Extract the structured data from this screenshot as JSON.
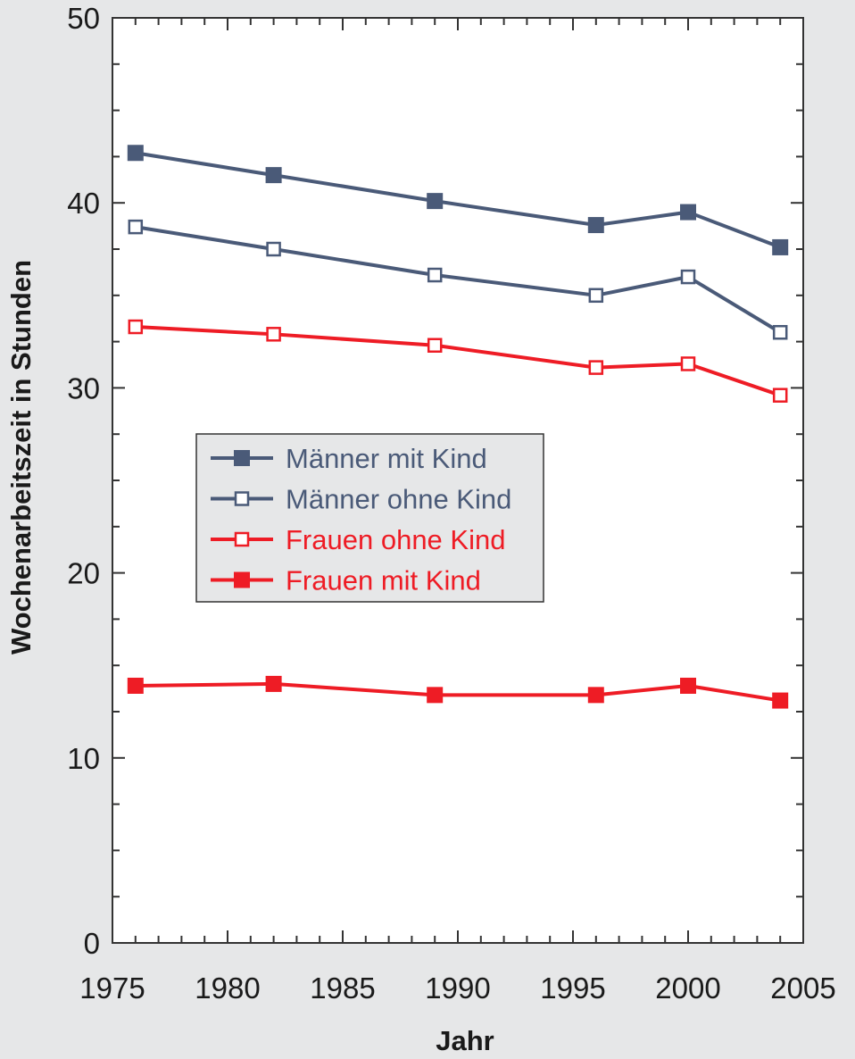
{
  "chart_data": {
    "type": "line",
    "title": "",
    "xlabel": "Jahr",
    "ylabel": "Wochenarbeitszeit in Stunden",
    "xlim": [
      1975,
      2005
    ],
    "ylim": [
      0,
      50
    ],
    "xticks": [
      1975,
      1980,
      1985,
      1990,
      1995,
      2000,
      2005
    ],
    "yticks": [
      0,
      10,
      20,
      30,
      40,
      50
    ],
    "grid": false,
    "legend_position": "middle-left",
    "x": [
      1976,
      1982,
      1989,
      1996,
      2000,
      2004
    ],
    "series": [
      {
        "name": "Männer mit Kind",
        "color": "#4a5a78",
        "marker": "square-filled",
        "values": [
          42.7,
          41.5,
          40.1,
          38.8,
          39.5,
          37.6
        ]
      },
      {
        "name": "Männer ohne Kind",
        "color": "#4a5a78",
        "marker": "square-open",
        "values": [
          38.7,
          37.5,
          36.1,
          35.0,
          36.0,
          33.0
        ]
      },
      {
        "name": "Frauen ohne Kind",
        "color": "#ee1c25",
        "marker": "square-open",
        "values": [
          33.3,
          32.9,
          32.3,
          31.1,
          31.3,
          29.6
        ]
      },
      {
        "name": "Frauen mit Kind",
        "color": "#ee1c25",
        "marker": "square-filled",
        "values": [
          13.9,
          14.0,
          13.4,
          13.4,
          13.9,
          13.1
        ]
      }
    ]
  }
}
